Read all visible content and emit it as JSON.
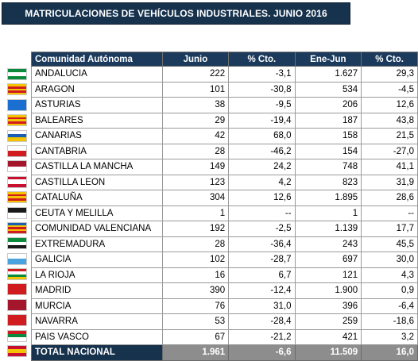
{
  "title": "MATRICULACIONES DE VEHÍCULOS INDUSTRIALES. JUNIO 2016",
  "headers": [
    "Comunidad Autónoma",
    "Junio",
    "% Cto.",
    "Ene-Jun",
    "% Cto."
  ],
  "rows": [
    {
      "name": "ANDALUCIA",
      "junio": "222",
      "pct1": "-3,1",
      "enejun": "1.627",
      "pct2": "29,3",
      "flag": "andalucia-flag-icon",
      "colors": [
        "#0a8a3a",
        "#ffffff",
        "#0a8a3a"
      ]
    },
    {
      "name": "ARAGON",
      "junio": "101",
      "pct1": "-30,8",
      "enejun": "534",
      "pct2": "-4,5",
      "flag": "aragon-flag-icon",
      "colors": [
        "#f5c400",
        "#d01c1f",
        "#f5c400",
        "#d01c1f",
        "#f5c400"
      ]
    },
    {
      "name": "ASTURIAS",
      "junio": "38",
      "pct1": "-9,5",
      "enejun": "206",
      "pct2": "12,6",
      "flag": "asturias-flag-icon",
      "colors": [
        "#1a6fd1"
      ]
    },
    {
      "name": "BALEARES",
      "junio": "29",
      "pct1": "-19,4",
      "enejun": "187",
      "pct2": "43,8",
      "flag": "baleares-flag-icon",
      "colors": [
        "#f5c400",
        "#d01c1f",
        "#f5c400",
        "#d01c1f",
        "#f5c400"
      ]
    },
    {
      "name": "CANARIAS",
      "junio": "42",
      "pct1": "68,0",
      "enejun": "158",
      "pct2": "21,5",
      "flag": "canarias-flag-icon",
      "colors": [
        "#ffffff",
        "#1a5fb4",
        "#f5c400"
      ]
    },
    {
      "name": "CANTABRIA",
      "junio": "28",
      "pct1": "-46,2",
      "enejun": "154",
      "pct2": "-27,0",
      "flag": "cantabria-flag-icon",
      "colors": [
        "#ffffff",
        "#d01c1f"
      ]
    },
    {
      "name": "CASTILLA LA MANCHA",
      "junio": "149",
      "pct1": "24,2",
      "enejun": "748",
      "pct2": "41,1",
      "flag": "castilla-la-mancha-flag-icon",
      "colors": [
        "#a3162c",
        "#ffffff"
      ]
    },
    {
      "name": "CASTILLA LEON",
      "junio": "123",
      "pct1": "4,2",
      "enejun": "823",
      "pct2": "31,9",
      "flag": "castilla-leon-flag-icon",
      "colors": [
        "#c8102e",
        "#ffffff",
        "#ffffff",
        "#c8102e"
      ]
    },
    {
      "name": "CATALUÑA",
      "junio": "304",
      "pct1": "12,6",
      "enejun": "1.895",
      "pct2": "28,6",
      "flag": "cataluna-flag-icon",
      "colors": [
        "#f5c400",
        "#d01c1f",
        "#f5c400",
        "#d01c1f",
        "#f5c400"
      ]
    },
    {
      "name": "CEUTA Y MELILLA",
      "junio": "1",
      "pct1": "--",
      "enejun": "1",
      "pct2": "--",
      "flag": "ceuta-melilla-flag-icon",
      "colors": [
        "#1a1a1a",
        "#ffffff"
      ]
    },
    {
      "name": "COMUNIDAD VALENCIANA",
      "junio": "192",
      "pct1": "-2,5",
      "enejun": "1.139",
      "pct2": "17,7",
      "flag": "comunidad-valenciana-flag-icon",
      "colors": [
        "#1a5fb4",
        "#f5c400",
        "#d01c1f",
        "#f5c400",
        "#d01c1f"
      ]
    },
    {
      "name": "EXTREMADURA",
      "junio": "28",
      "pct1": "-36,4",
      "enejun": "243",
      "pct2": "45,5",
      "flag": "extremadura-flag-icon",
      "colors": [
        "#0a8a3a",
        "#ffffff",
        "#1a1a1a"
      ]
    },
    {
      "name": "GALICIA",
      "junio": "102",
      "pct1": "-28,7",
      "enejun": "697",
      "pct2": "30,0",
      "flag": "galicia-flag-icon",
      "colors": [
        "#ffffff",
        "#4aa3df"
      ]
    },
    {
      "name": "LA RIOJA",
      "junio": "16",
      "pct1": "6,7",
      "enejun": "121",
      "pct2": "4,3",
      "flag": "la-rioja-flag-icon",
      "colors": [
        "#d01c1f",
        "#ffffff",
        "#0a8a3a",
        "#f5c400"
      ]
    },
    {
      "name": "MADRID",
      "junio": "390",
      "pct1": "-12,4",
      "enejun": "1.900",
      "pct2": "0,9",
      "flag": "madrid-flag-icon",
      "colors": [
        "#d01c1f"
      ]
    },
    {
      "name": "MURCIA",
      "junio": "76",
      "pct1": "31,0",
      "enejun": "396",
      "pct2": "-6,4",
      "flag": "murcia-flag-icon",
      "colors": [
        "#a3162c"
      ]
    },
    {
      "name": "NAVARRA",
      "junio": "53",
      "pct1": "-28,4",
      "enejun": "259",
      "pct2": "-18,6",
      "flag": "navarra-flag-icon",
      "colors": [
        "#d01c1f"
      ]
    },
    {
      "name": "PAIS VASCO",
      "junio": "67",
      "pct1": "-21,2",
      "enejun": "421",
      "pct2": "3,2",
      "flag": "pais-vasco-flag-icon",
      "colors": [
        "#d01c1f",
        "#0a8a3a",
        "#ffffff"
      ]
    },
    {
      "name": "TOTAL NACIONAL",
      "junio": "1.961",
      "pct1": "-6,6",
      "enejun": "11.509",
      "pct2": "16,0",
      "flag": "espana-flag-icon",
      "colors": [
        "#c8102e",
        "#f5c400",
        "#c8102e"
      ],
      "total": true
    }
  ]
}
